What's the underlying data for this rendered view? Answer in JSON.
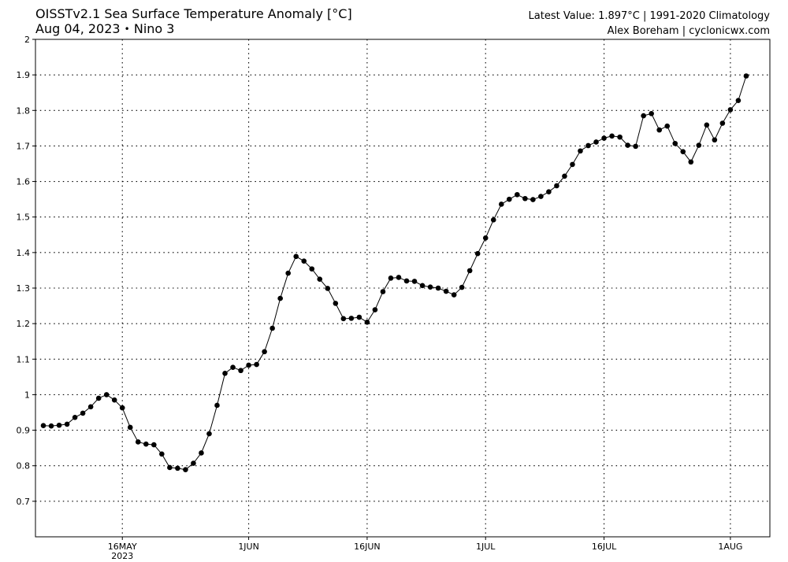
{
  "header": {
    "title_line1": "OISSTv2.1 Sea Surface Temperature Anomaly [°C]",
    "date": "Aug 04, 2023",
    "separator": "•",
    "region": "Nino 3",
    "latest_value": "Latest Value: 1.897°C | 1991-2020 Climatology",
    "credit": "Alex Boreham | cyclonicwx.com"
  },
  "chart_data": {
    "type": "line",
    "start_date": "2023-05-06",
    "x_tick_labels": [
      {
        "day": 10,
        "label": "16MAY",
        "sublabel": "2023"
      },
      {
        "day": 26,
        "label": "1JUN",
        "sublabel": ""
      },
      {
        "day": 41,
        "label": "16JUN",
        "sublabel": ""
      },
      {
        "day": 56,
        "label": "1JUL",
        "sublabel": ""
      },
      {
        "day": 71,
        "label": "16JUL",
        "sublabel": ""
      },
      {
        "day": 87,
        "label": "1AUG",
        "sublabel": ""
      }
    ],
    "x_range": [
      "2023-05-05",
      "2023-08-06"
    ],
    "ylim": [
      0.6,
      2.0
    ],
    "y_ticks": [
      0.7,
      0.8,
      0.9,
      1.0,
      1.1,
      1.2,
      1.3,
      1.4,
      1.5,
      1.6,
      1.7,
      1.8,
      1.9,
      2.0
    ],
    "y_tick_labels": [
      "0.7",
      "0.8",
      "0.9",
      "1",
      "1.1",
      "1.2",
      "1.3",
      "1.4",
      "1.5",
      "1.6",
      "1.7",
      "1.8",
      "1.9",
      "2"
    ],
    "grid": true,
    "xlabel": "",
    "ylabel": "",
    "series": [
      {
        "color": "#000000",
        "values": [
          0.913,
          0.912,
          0.914,
          0.917,
          0.936,
          0.948,
          0.966,
          0.99,
          1.0,
          0.985,
          0.963,
          0.908,
          0.867,
          0.861,
          0.859,
          0.833,
          0.795,
          0.793,
          0.789,
          0.807,
          0.836,
          0.89,
          0.97,
          1.06,
          1.077,
          1.068,
          1.083,
          1.085,
          1.121,
          1.187,
          1.271,
          1.342,
          1.389,
          1.376,
          1.354,
          1.325,
          1.299,
          1.257,
          1.214,
          1.215,
          1.218,
          1.204,
          1.239,
          1.29,
          1.328,
          1.33,
          1.32,
          1.319,
          1.307,
          1.303,
          1.3,
          1.291,
          1.281,
          1.302,
          1.349,
          1.397,
          1.441,
          1.492,
          1.536,
          1.55,
          1.563,
          1.552,
          1.549,
          1.558,
          1.571,
          1.588,
          1.615,
          1.648,
          1.686,
          1.701,
          1.711,
          1.722,
          1.728,
          1.725,
          1.702,
          1.699,
          1.785,
          1.791,
          1.745,
          1.756,
          1.707,
          1.684,
          1.655,
          1.702,
          1.759,
          1.717,
          1.764,
          1.802,
          1.828,
          1.897
        ]
      }
    ]
  }
}
